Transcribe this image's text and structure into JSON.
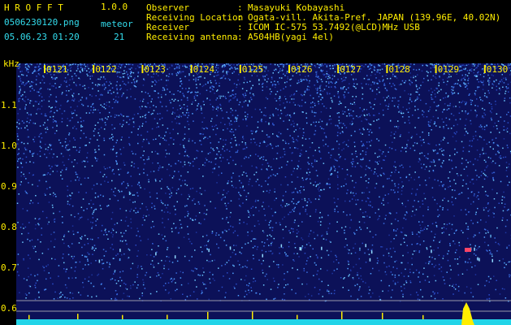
{
  "header": {
    "app_name": "H R O F F T",
    "version": "1.0.0",
    "filename": "0506230120.png",
    "meteor_label": "meteor",
    "datetime": "05.06.23 01:20",
    "meteor_count": "21",
    "info": [
      {
        "label": "Observer",
        "separator": ":",
        "value": "Masayuki Kobayashi"
      },
      {
        "label": "Receiving Location",
        "separator": ":",
        "value": "Ogata-vill. Akita-Pref. JAPAN (139.96E, 40.02N)"
      },
      {
        "label": "Receiver",
        "separator": ":",
        "value": "ICOM IC-575 53.7492(@LCD)MHz USB"
      },
      {
        "label": "Receiving antenna",
        "separator": ":",
        "value": "A504HB(yagi 4el)"
      }
    ]
  },
  "spectrogram": {
    "unit": "kHz",
    "time_labels": [
      "0121",
      "0122",
      "0123",
      "0124",
      "0125",
      "0126",
      "0127",
      "0128",
      "0129",
      "0130"
    ],
    "freq_labels": [
      "1.1",
      "1.0",
      "0.9",
      "0.8",
      "0.7",
      "0.6"
    ]
  }
}
